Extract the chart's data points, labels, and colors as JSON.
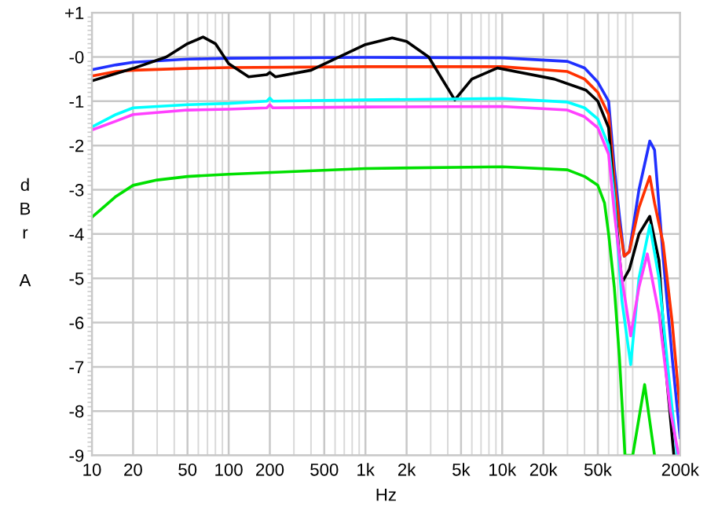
{
  "chart_data": {
    "type": "line",
    "xlabel": "Hz",
    "ylabel": "dBr A",
    "log": "x",
    "grid": true,
    "line_style": "solid",
    "marker": "none",
    "xlim": [
      10,
      200000
    ],
    "xticks": [
      {
        "value": 10,
        "label": "10"
      },
      {
        "value": 20,
        "label": "20"
      },
      {
        "value": 50,
        "label": "50"
      },
      {
        "value": 100,
        "label": "100"
      },
      {
        "value": 200,
        "label": "200"
      },
      {
        "value": 500,
        "label": "500"
      },
      {
        "value": 1000,
        "label": "1k"
      },
      {
        "value": 2000,
        "label": "2k"
      },
      {
        "value": 5000,
        "label": "5k"
      },
      {
        "value": 10000,
        "label": "10k"
      },
      {
        "value": 20000,
        "label": "20k"
      },
      {
        "value": 50000,
        "label": "50k"
      },
      {
        "value": 200000,
        "label": "200k"
      }
    ],
    "ylim": [
      -9,
      1
    ],
    "yticks": [
      {
        "value": 1,
        "label": "+1"
      },
      {
        "value": 0,
        "label": "-0"
      },
      -1,
      -2,
      -3,
      -4,
      -5,
      -6,
      -7,
      -8,
      -9
    ],
    "series": [
      {
        "color": "#2030ff",
        "x": [
          10,
          15,
          20,
          50,
          100,
          1000,
          10000,
          30000,
          40000,
          50000,
          60000,
          66000,
          72000,
          78000,
          85000,
          100000,
          120000,
          130000,
          150000,
          175000,
          200000
        ],
        "values": [
          -0.29,
          -0.18,
          -0.12,
          -0.05,
          -0.03,
          -0.01,
          -0.02,
          -0.1,
          -0.25,
          -0.57,
          -1.0,
          -2.5,
          -3.6,
          -4.5,
          -4.4,
          -3.0,
          -1.9,
          -2.1,
          -4.5,
          -6.8,
          -8.6
        ]
      },
      {
        "color": "#ff3000",
        "x": [
          10,
          15,
          20,
          50,
          100,
          1000,
          10000,
          30000,
          40000,
          50000,
          60000,
          66000,
          72000,
          78000,
          85000,
          100000,
          120000,
          130000,
          150000,
          175000,
          200000
        ],
        "values": [
          -0.43,
          -0.33,
          -0.3,
          -0.26,
          -0.24,
          -0.22,
          -0.22,
          -0.33,
          -0.5,
          -0.8,
          -1.3,
          -2.8,
          -3.8,
          -4.5,
          -4.4,
          -3.4,
          -2.7,
          -3.3,
          -4.2,
          -6.0,
          -8.0
        ]
      },
      {
        "color": "#000000",
        "x": [
          10,
          20,
          35,
          50,
          65,
          80,
          100,
          140,
          190,
          200,
          220,
          400,
          1000,
          1570,
          2000,
          2900,
          4500,
          6000,
          9200,
          24000,
          41000,
          50000,
          60000,
          66000,
          75000,
          85000,
          100000,
          120000,
          140000,
          160000,
          180000
        ],
        "values": [
          -0.54,
          -0.26,
          0.0,
          0.3,
          0.45,
          0.3,
          -0.15,
          -0.45,
          -0.4,
          -0.35,
          -0.45,
          -0.3,
          0.28,
          0.43,
          0.35,
          0.0,
          -0.97,
          -0.5,
          -0.25,
          -0.5,
          -0.75,
          -1.0,
          -1.6,
          -3.2,
          -5.1,
          -4.8,
          -4.0,
          -3.6,
          -4.6,
          -7.3,
          -9.0
        ]
      },
      {
        "color": "#00ffff",
        "x": [
          10,
          15,
          20,
          50,
          100,
          190,
          200,
          210,
          1000,
          10000,
          30000,
          40000,
          50000,
          60000,
          66000,
          75000,
          87000,
          100000,
          120000,
          140000,
          165000,
          190000
        ],
        "values": [
          -1.58,
          -1.3,
          -1.15,
          -1.08,
          -1.05,
          -1.0,
          -0.93,
          -1.0,
          -0.97,
          -0.94,
          -1.02,
          -1.15,
          -1.4,
          -2.0,
          -3.2,
          -5.5,
          -6.95,
          -5.0,
          -3.8,
          -5.0,
          -7.2,
          -9.0
        ]
      },
      {
        "color": "#ff40ff",
        "x": [
          10,
          15,
          20,
          50,
          100,
          190,
          200,
          210,
          1000,
          10000,
          30000,
          40000,
          50000,
          60000,
          66000,
          75000,
          87000,
          100000,
          115000,
          140000,
          170000,
          195000
        ],
        "values": [
          -1.65,
          -1.45,
          -1.3,
          -1.2,
          -1.18,
          -1.15,
          -1.08,
          -1.15,
          -1.13,
          -1.12,
          -1.2,
          -1.35,
          -1.6,
          -2.2,
          -3.5,
          -5.0,
          -6.3,
          -5.2,
          -4.45,
          -5.8,
          -8.0,
          -9.0
        ]
      },
      {
        "color": "#00e000",
        "x": [
          10,
          15,
          20,
          30,
          50,
          100,
          1000,
          10000,
          30000,
          40000,
          50000,
          56000,
          60000,
          66000,
          72000,
          79000,
          90000,
          110000,
          130000
        ],
        "values": [
          -3.62,
          -3.15,
          -2.9,
          -2.78,
          -2.7,
          -2.65,
          -2.52,
          -2.48,
          -2.55,
          -2.7,
          -2.9,
          -3.3,
          -4.0,
          -5.2,
          -6.8,
          -9.0,
          -9.0,
          -7.4,
          -9.0
        ]
      }
    ]
  }
}
